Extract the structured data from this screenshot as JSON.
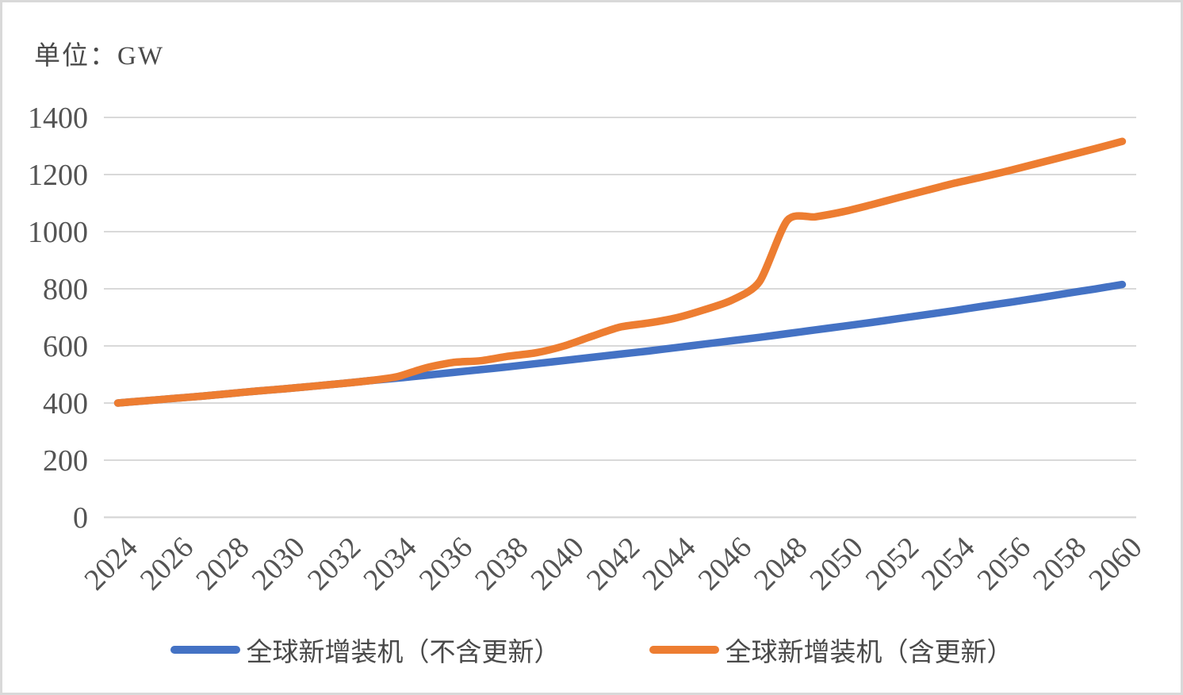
{
  "chart_data": {
    "type": "line",
    "title": "单位：GW",
    "x": [
      2024,
      2025,
      2026,
      2027,
      2028,
      2029,
      2030,
      2031,
      2032,
      2033,
      2034,
      2035,
      2036,
      2037,
      2038,
      2039,
      2040,
      2041,
      2042,
      2043,
      2044,
      2045,
      2046,
      2047,
      2048,
      2049,
      2050,
      2051,
      2052,
      2053,
      2054,
      2055,
      2056,
      2057,
      2058,
      2059,
      2060
    ],
    "x_tick_labels": [
      "2024",
      "2026",
      "2028",
      "2030",
      "2032",
      "2034",
      "2036",
      "2038",
      "2040",
      "2042",
      "2044",
      "2046",
      "2048",
      "2050",
      "2052",
      "2054",
      "2056",
      "2058",
      "2060"
    ],
    "x_tick_step": 2,
    "y_ticks": [
      0,
      200,
      400,
      600,
      800,
      1000,
      1200,
      1400
    ],
    "ylim": [
      0,
      1400
    ],
    "grid": "horizontal",
    "legend_position": "bottom",
    "axis_text_color": "#545454",
    "gridline_color": "#D9D9D9",
    "series": [
      {
        "name": "全球新增装机（不含更新）",
        "color": "#4472C4",
        "values": [
          400,
          408,
          416,
          424,
          433,
          442,
          450,
          459,
          468,
          478,
          487,
          497,
          507,
          517,
          527,
          538,
          549,
          560,
          571,
          582,
          594,
          606,
          618,
          630,
          643,
          656,
          669,
          682,
          696,
          710,
          724,
          739,
          753,
          768,
          784,
          799,
          815
        ]
      },
      {
        "name": "全球新增装机（含更新）",
        "color": "#ED7D31",
        "values": [
          400,
          408,
          416,
          424,
          433,
          442,
          450,
          459,
          468,
          478,
          492,
          522,
          542,
          548,
          564,
          576,
          600,
          634,
          666,
          680,
          698,
          726,
          760,
          825,
          1040,
          1052,
          1070,
          1094,
          1120,
          1145,
          1170,
          1192,
          1215,
          1240,
          1265,
          1290,
          1316
        ]
      }
    ]
  }
}
